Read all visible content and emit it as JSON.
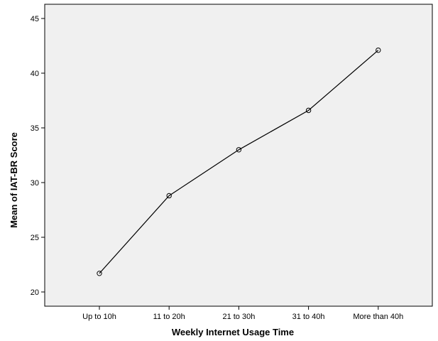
{
  "chart_data": {
    "type": "line",
    "categories": [
      "Up to 10h",
      "11 to 20h",
      "21 to 30h",
      "31 to 40h",
      "More than 40h"
    ],
    "values": [
      21.7,
      28.8,
      33.0,
      36.6,
      42.1
    ],
    "xlabel": "Weekly Internet Usage Time",
    "ylabel": "Mean of IAT-BR Score",
    "ylim": [
      18.7,
      46.3
    ],
    "yticks": [
      20,
      25,
      30,
      35,
      40,
      45
    ],
    "grid": false,
    "marker": "open-circle",
    "colors": {
      "plot_background": "#f0f0f0",
      "line": "#000000",
      "frame": "#000000"
    }
  }
}
